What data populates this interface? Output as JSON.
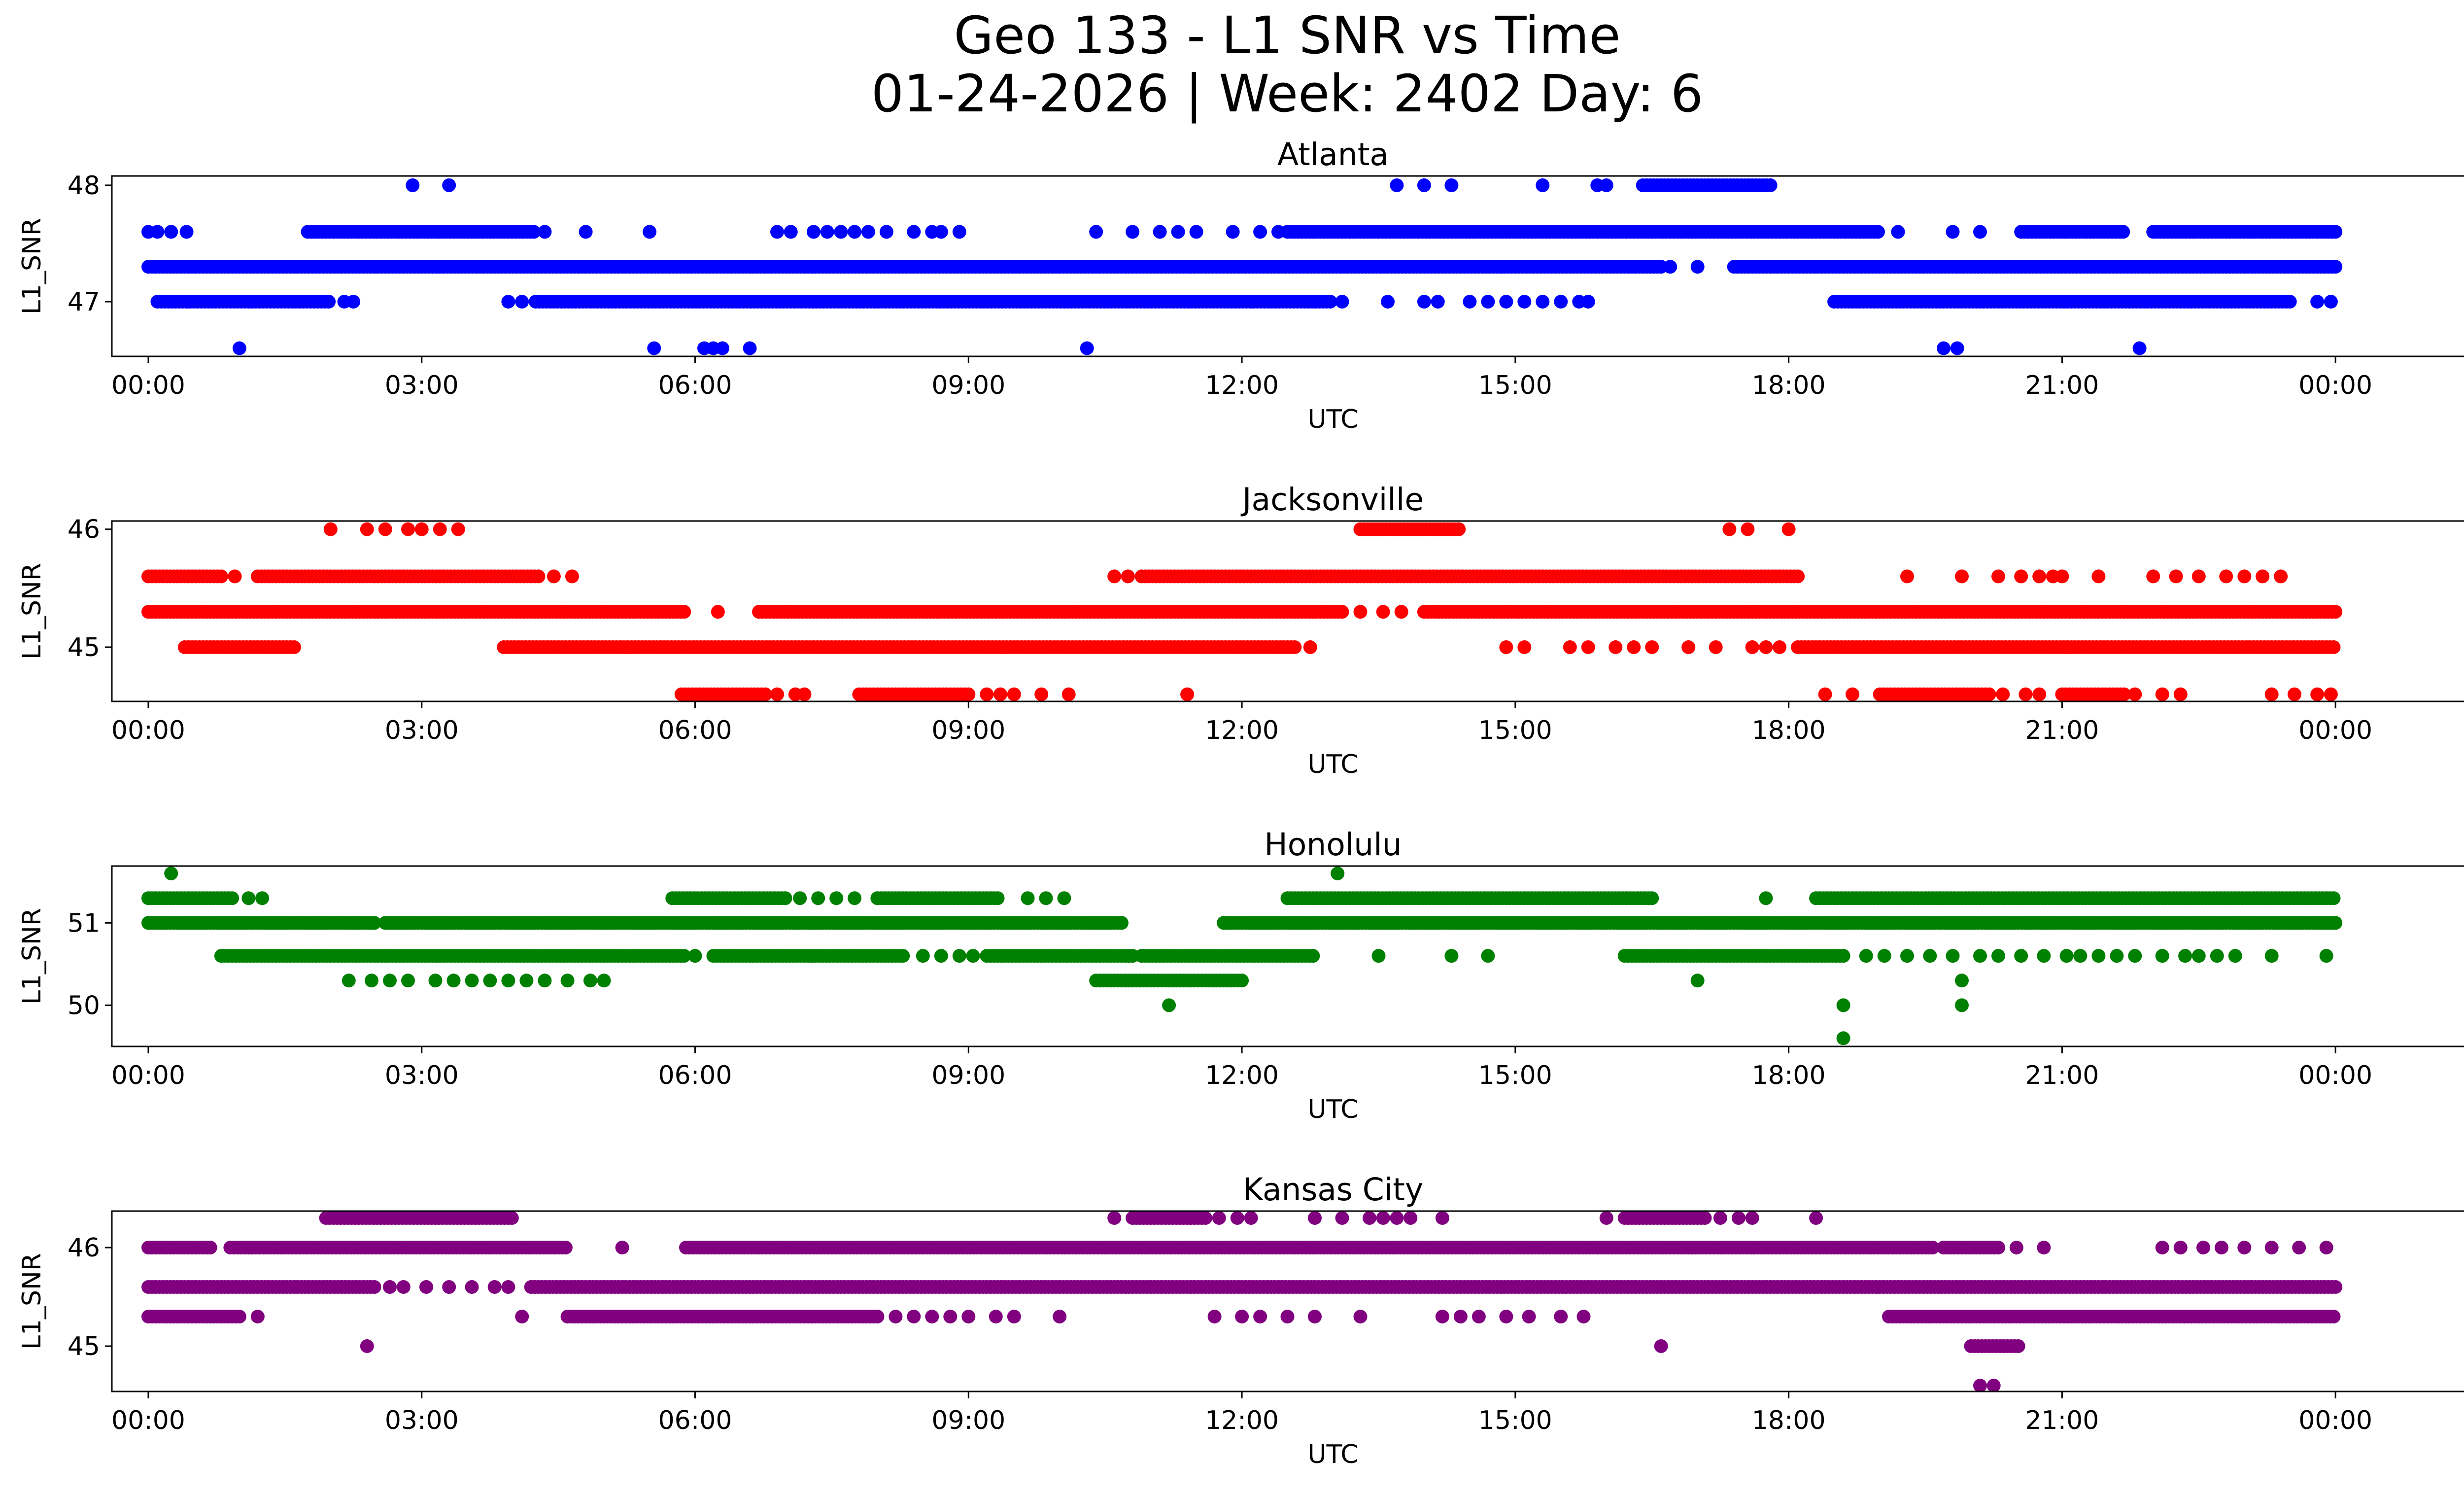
{
  "figure": {
    "title_line1": "Geo 133 - L1 SNR vs Time",
    "title_line2": "01-24-2026 | Week: 2402 Day: 6"
  },
  "chart_data": [
    {
      "type": "scatter",
      "title": "Atlanta",
      "xlabel": "UTC",
      "ylabel": "L1_SNR",
      "color": "#0000ff",
      "xlim_hours": [
        -0.4,
        26.4
      ],
      "ylim": [
        46.53,
        48.08
      ],
      "x_ticks": [
        {
          "h": 0,
          "label": "00:00"
        },
        {
          "h": 3,
          "label": "03:00"
        },
        {
          "h": 6,
          "label": "06:00"
        },
        {
          "h": 9,
          "label": "09:00"
        },
        {
          "h": 12,
          "label": "12:00"
        },
        {
          "h": 15,
          "label": "15:00"
        },
        {
          "h": 18,
          "label": "18:00"
        },
        {
          "h": 21,
          "label": "21:00"
        },
        {
          "h": 24,
          "label": "00:00"
        }
      ],
      "y_ticks": [
        {
          "v": 47,
          "label": "47"
        },
        {
          "v": 48,
          "label": "48"
        }
      ],
      "levels": [
        {
          "y": 48.0,
          "runs": [
            [
              16.4,
              17.8
            ]
          ],
          "points": [
            2.9,
            3.3,
            13.7,
            14.0,
            14.3,
            15.3,
            15.9,
            16.0
          ]
        },
        {
          "y": 47.6,
          "runs": [
            [
              1.75,
              4.25
            ],
            [
              12.5,
              19.0
            ],
            [
              20.55,
              21.7
            ],
            [
              22.0,
              24.0
            ]
          ],
          "points": [
            0.0,
            0.1,
            0.25,
            0.42,
            4.35,
            4.8,
            5.5,
            6.9,
            7.05,
            7.3,
            7.45,
            7.6,
            7.75,
            7.9,
            8.1,
            8.4,
            8.6,
            8.7,
            8.9,
            10.4,
            10.8,
            11.1,
            11.3,
            11.5,
            11.9,
            12.2,
            12.4,
            19.2,
            19.8,
            20.1
          ]
        },
        {
          "y": 47.3,
          "runs": [
            [
              0.0,
              16.6
            ],
            [
              17.4,
              24.0
            ]
          ],
          "points": [
            16.7,
            17.0
          ]
        },
        {
          "y": 47.0,
          "runs": [
            [
              0.1,
              2.0
            ],
            [
              4.25,
              13.0
            ],
            [
              18.5,
              23.5
            ]
          ],
          "points": [
            2.15,
            2.25,
            3.95,
            4.1,
            13.1,
            13.6,
            14.0,
            14.15,
            14.5,
            14.7,
            14.9,
            15.1,
            15.3,
            15.5,
            15.7,
            15.8,
            23.8,
            23.95
          ]
        },
        {
          "y": 46.6,
          "runs": [],
          "points": [
            1.0,
            5.55,
            6.1,
            6.2,
            6.3,
            6.6,
            10.3,
            19.7,
            19.85,
            21.85
          ]
        }
      ]
    },
    {
      "type": "scatter",
      "title": "Jacksonville",
      "xlabel": "UTC",
      "ylabel": "L1_SNR",
      "color": "#ff0000",
      "xlim_hours": [
        -0.4,
        26.4
      ],
      "ylim": [
        44.54,
        46.07
      ],
      "x_ticks": [
        {
          "h": 0,
          "label": "00:00"
        },
        {
          "h": 3,
          "label": "03:00"
        },
        {
          "h": 6,
          "label": "06:00"
        },
        {
          "h": 9,
          "label": "09:00"
        },
        {
          "h": 12,
          "label": "12:00"
        },
        {
          "h": 15,
          "label": "15:00"
        },
        {
          "h": 18,
          "label": "18:00"
        },
        {
          "h": 21,
          "label": "21:00"
        },
        {
          "h": 24,
          "label": "00:00"
        }
      ],
      "y_ticks": [
        {
          "v": 45,
          "label": "45"
        },
        {
          "v": 46,
          "label": "46"
        }
      ],
      "levels": [
        {
          "y": 46.0,
          "runs": [
            [
              13.3,
              14.4
            ]
          ],
          "points": [
            2.0,
            2.4,
            2.6,
            2.85,
            3.0,
            3.2,
            3.4,
            17.35,
            17.55,
            18.0
          ]
        },
        {
          "y": 45.6,
          "runs": [
            [
              0.0,
              0.8
            ],
            [
              1.2,
              4.3
            ],
            [
              10.9,
              18.1
            ]
          ],
          "points": [
            0.95,
            4.45,
            4.65,
            10.6,
            10.75,
            19.3,
            19.9,
            20.3,
            20.55,
            20.75,
            20.9,
            21.0,
            21.4,
            22.0,
            22.25,
            22.5,
            22.8,
            23.0,
            23.2,
            23.4
          ]
        },
        {
          "y": 45.3,
          "runs": [
            [
              0.0,
              5.9
            ],
            [
              6.7,
              13.1
            ],
            [
              14.0,
              24.0
            ]
          ],
          "points": [
            6.25,
            13.3,
            13.55,
            13.75
          ]
        },
        {
          "y": 45.0,
          "runs": [
            [
              0.4,
              1.6
            ],
            [
              3.9,
              12.6
            ],
            [
              18.1,
              24.0
            ]
          ],
          "points": [
            12.75,
            14.9,
            15.1,
            15.6,
            15.8,
            16.1,
            16.3,
            16.5,
            16.9,
            17.2,
            17.6,
            17.75,
            17.9
          ]
        },
        {
          "y": 44.6,
          "runs": [
            [
              5.85,
              6.8
            ],
            [
              7.8,
              9.0
            ],
            [
              19.0,
              20.2
            ],
            [
              21.0,
              21.7
            ]
          ],
          "points": [
            6.9,
            7.1,
            7.2,
            9.2,
            9.35,
            9.5,
            9.8,
            10.1,
            11.4,
            18.4,
            18.7,
            20.35,
            20.6,
            20.75,
            21.8,
            22.1,
            22.3,
            23.3,
            23.55,
            23.8,
            23.95
          ]
        }
      ]
    },
    {
      "type": "scatter",
      "title": "Honolulu",
      "xlabel": "UTC",
      "ylabel": "L1_SNR",
      "color": "#008000",
      "xlim_hours": [
        -0.4,
        26.4
      ],
      "ylim": [
        49.5,
        51.69
      ],
      "x_ticks": [
        {
          "h": 0,
          "label": "00:00"
        },
        {
          "h": 3,
          "label": "03:00"
        },
        {
          "h": 6,
          "label": "06:00"
        },
        {
          "h": 9,
          "label": "09:00"
        },
        {
          "h": 12,
          "label": "12:00"
        },
        {
          "h": 15,
          "label": "15:00"
        },
        {
          "h": 18,
          "label": "18:00"
        },
        {
          "h": 21,
          "label": "21:00"
        },
        {
          "h": 24,
          "label": "00:00"
        }
      ],
      "y_ticks": [
        {
          "v": 50,
          "label": "50"
        },
        {
          "v": 51,
          "label": "51"
        }
      ],
      "levels": [
        {
          "y": 51.6,
          "runs": [],
          "points": [
            0.25,
            13.05
          ]
        },
        {
          "y": 51.3,
          "runs": [
            [
              0.0,
              0.95
            ],
            [
              5.75,
              7.0
            ],
            [
              8.0,
              9.35
            ],
            [
              12.5,
              16.5
            ],
            [
              18.3,
              24.0
            ]
          ],
          "points": [
            1.1,
            1.25,
            7.15,
            7.35,
            7.55,
            7.75,
            9.65,
            9.85,
            10.05,
            17.75
          ]
        },
        {
          "y": 51.0,
          "runs": [
            [
              0.0,
              2.5
            ],
            [
              2.6,
              10.7
            ],
            [
              11.8,
              24.0
            ]
          ],
          "points": []
        },
        {
          "y": 50.6,
          "runs": [
            [
              0.8,
              5.9
            ],
            [
              6.2,
              8.3
            ],
            [
              9.2,
              10.8
            ],
            [
              10.9,
              12.8
            ],
            [
              16.2,
              18.6
            ]
          ],
          "points": [
            6.0,
            8.5,
            8.7,
            8.9,
            9.05,
            13.5,
            14.3,
            14.7,
            18.85,
            19.05,
            19.3,
            19.55,
            19.8,
            20.1,
            20.3,
            20.55,
            20.8,
            21.05,
            21.2,
            21.4,
            21.6,
            21.8,
            22.1,
            22.35,
            22.5,
            22.7,
            22.9,
            23.3,
            23.9
          ]
        },
        {
          "y": 50.3,
          "runs": [
            [
              10.4,
              12.0
            ]
          ],
          "points": [
            2.2,
            2.45,
            2.65,
            2.85,
            3.15,
            3.35,
            3.55,
            3.75,
            3.95,
            4.15,
            4.35,
            4.6,
            4.85,
            5.0,
            17.0,
            19.9
          ]
        },
        {
          "y": 50.0,
          "runs": [],
          "points": [
            11.2,
            18.6,
            19.9
          ]
        },
        {
          "y": 49.6,
          "runs": [],
          "points": [
            18.6
          ]
        }
      ]
    },
    {
      "type": "scatter",
      "title": "Kansas City",
      "xlabel": "UTC",
      "ylabel": "L1_SNR",
      "color": "#800080",
      "xlim_hours": [
        -0.4,
        26.4
      ],
      "ylim": [
        44.54,
        46.37
      ],
      "x_ticks": [
        {
          "h": 0,
          "label": "00:00"
        },
        {
          "h": 3,
          "label": "03:00"
        },
        {
          "h": 6,
          "label": "06:00"
        },
        {
          "h": 9,
          "label": "09:00"
        },
        {
          "h": 12,
          "label": "12:00"
        },
        {
          "h": 15,
          "label": "15:00"
        },
        {
          "h": 18,
          "label": "18:00"
        },
        {
          "h": 21,
          "label": "21:00"
        },
        {
          "h": 24,
          "label": "00:00"
        }
      ],
      "y_ticks": [
        {
          "v": 45,
          "label": "45"
        },
        {
          "v": 46,
          "label": "46"
        }
      ],
      "levels": [
        {
          "y": 46.3,
          "runs": [
            [
              1.95,
              4.0
            ],
            [
              10.8,
              11.6
            ],
            [
              16.2,
              17.1
            ]
          ],
          "points": [
            10.6,
            11.75,
            11.95,
            12.1,
            12.8,
            13.1,
            13.4,
            13.55,
            13.7,
            13.85,
            14.2,
            16.0,
            17.25,
            17.45,
            17.6,
            18.3
          ]
        },
        {
          "y": 46.0,
          "runs": [
            [
              0.0,
              0.7
            ],
            [
              0.9,
              4.6
            ],
            [
              5.9,
              19.6
            ],
            [
              19.7,
              20.3
            ]
          ],
          "points": [
            5.2,
            20.5,
            20.8,
            22.1,
            22.3,
            22.55,
            22.75,
            23.0,
            23.3,
            23.6,
            23.9
          ]
        },
        {
          "y": 45.6,
          "runs": [
            [
              0.0,
              2.5
            ],
            [
              4.2,
              24.0
            ]
          ],
          "points": [
            2.65,
            2.8,
            3.05,
            3.3,
            3.55,
            3.8,
            3.95
          ]
        },
        {
          "y": 45.3,
          "runs": [
            [
              0.0,
              1.0
            ],
            [
              4.6,
              8.0
            ],
            [
              19.1,
              24.0
            ]
          ],
          "points": [
            1.2,
            4.1,
            8.2,
            8.4,
            8.6,
            8.8,
            9.0,
            9.3,
            9.5,
            10.0,
            11.7,
            12.0,
            12.2,
            12.5,
            12.8,
            13.3,
            14.2,
            14.4,
            14.6,
            14.9,
            15.15,
            15.5,
            15.75
          ]
        },
        {
          "y": 45.0,
          "runs": [
            [
              20.0,
              20.55
            ]
          ],
          "points": [
            2.4,
            16.6
          ]
        },
        {
          "y": 44.6,
          "runs": [],
          "points": [
            20.1,
            20.25
          ]
        }
      ]
    }
  ]
}
